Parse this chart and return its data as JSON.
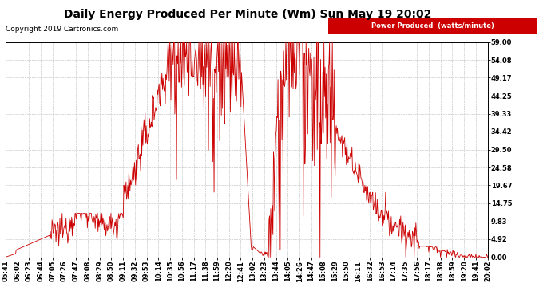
{
  "title": "Daily Energy Produced Per Minute (Wm) Sun May 19 20:02",
  "copyright": "Copyright 2019 Cartronics.com",
  "legend_label": "Power Produced  (watts/minute)",
  "legend_bg": "#cc0000",
  "legend_text_color": "#ffffff",
  "line_color": "#cc0000",
  "bg_color": "#ffffff",
  "grid_color": "#bbbbbb",
  "ymin": 0.0,
  "ymax": 59.0,
  "yticks": [
    0.0,
    4.92,
    9.83,
    14.75,
    19.67,
    24.58,
    29.5,
    34.42,
    39.33,
    44.25,
    49.17,
    54.08,
    59.0
  ],
  "xtick_labels": [
    "05:41",
    "06:02",
    "06:23",
    "06:44",
    "07:05",
    "07:26",
    "07:47",
    "08:08",
    "08:29",
    "08:50",
    "09:11",
    "09:32",
    "09:53",
    "10:14",
    "10:35",
    "10:56",
    "11:17",
    "11:38",
    "11:59",
    "12:20",
    "12:41",
    "13:02",
    "13:23",
    "13:44",
    "14:05",
    "14:26",
    "14:47",
    "15:08",
    "15:29",
    "15:50",
    "16:11",
    "16:32",
    "16:53",
    "17:14",
    "17:35",
    "17:56",
    "18:17",
    "18:38",
    "18:59",
    "19:20",
    "19:41",
    "20:02"
  ],
  "title_fontsize": 10,
  "axis_fontsize": 6,
  "copyright_fontsize": 6.5
}
